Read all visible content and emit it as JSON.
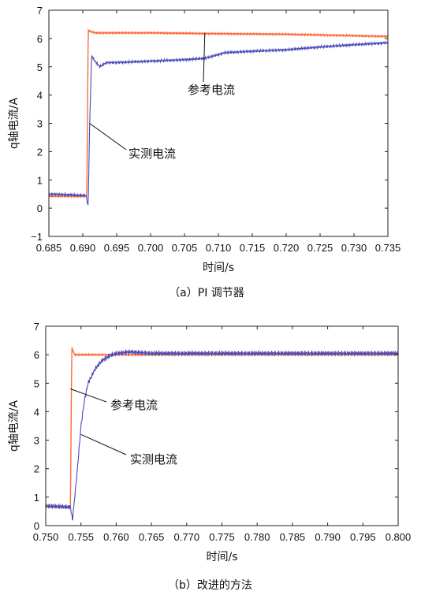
{
  "chart_data": [
    {
      "type": "line",
      "caption": "（a）PI 调节器",
      "xlabel": "时间/s",
      "ylabel": "q轴电流/A",
      "xlim": [
        0.685,
        0.735
      ],
      "ylim": [
        -1,
        7
      ],
      "x_ticks": [
        "0.685",
        "0.690",
        "0.695",
        "0.700",
        "0.705",
        "0.710",
        "0.715",
        "0.720",
        "0.725",
        "0.730",
        "0.735"
      ],
      "y_ticks": [
        "−1",
        "0",
        "1",
        "2",
        "3",
        "4",
        "5",
        "6",
        "7"
      ],
      "grid": false,
      "series": [
        {
          "name": "参考电流",
          "color": "#ff6a3d",
          "x": [
            0.685,
            0.6906,
            0.6908,
            0.6911,
            0.6918,
            0.7,
            0.71,
            0.72,
            0.73,
            0.735
          ],
          "y": [
            0.42,
            0.42,
            6.3,
            6.25,
            6.2,
            6.2,
            6.17,
            6.15,
            6.1,
            6.07
          ]
        },
        {
          "name": "实测电流",
          "color": "#4a4ab8",
          "x": [
            0.685,
            0.6905,
            0.6908,
            0.691,
            0.6913,
            0.6918,
            0.6925,
            0.6935,
            0.695,
            0.7,
            0.705,
            0.708,
            0.711,
            0.715,
            0.72,
            0.725,
            0.73,
            0.735
          ],
          "y": [
            0.5,
            0.45,
            0.05,
            2.8,
            5.4,
            5.2,
            5.0,
            5.15,
            5.15,
            5.2,
            5.25,
            5.3,
            5.5,
            5.55,
            5.6,
            5.7,
            5.78,
            5.85
          ]
        }
      ],
      "annotations": [
        {
          "text": "参考电流",
          "x": 0.708,
          "y": 6.2
        },
        {
          "text": "实测电流",
          "x": 0.691,
          "y": 3.0
        }
      ]
    },
    {
      "type": "line",
      "caption": "（b）改进的方法",
      "xlabel": "时间/s",
      "ylabel": "q轴电流/A",
      "xlim": [
        0.75,
        0.8
      ],
      "ylim": [
        0,
        7
      ],
      "x_ticks": [
        "0.750",
        "0.755",
        "0.760",
        "0.765",
        "0.770",
        "0.775",
        "0.780",
        "0.785",
        "0.790",
        "0.795",
        "0.800"
      ],
      "y_ticks": [
        "0",
        "1",
        "2",
        "3",
        "4",
        "5",
        "6",
        "7"
      ],
      "grid": false,
      "series": [
        {
          "name": "参考电流",
          "color": "#ff6a3d",
          "x": [
            0.75,
            0.7535,
            0.7537,
            0.7541,
            0.755,
            0.76,
            0.77,
            0.78,
            0.79,
            0.8
          ],
          "y": [
            0.65,
            0.65,
            6.25,
            6.0,
            6.0,
            6.0,
            6.0,
            6.0,
            6.0,
            6.0
          ]
        },
        {
          "name": "实测电流",
          "color": "#4a4ab8",
          "x": [
            0.75,
            0.7535,
            0.7538,
            0.7545,
            0.755,
            0.7555,
            0.756,
            0.757,
            0.758,
            0.759,
            0.76,
            0.762,
            0.765,
            0.77,
            0.78,
            0.79,
            0.8
          ],
          "y": [
            0.7,
            0.65,
            0.2,
            2.0,
            3.5,
            4.4,
            5.0,
            5.5,
            5.8,
            5.95,
            6.05,
            6.1,
            6.05,
            6.05,
            6.05,
            6.05,
            6.05
          ]
        }
      ],
      "annotations": [
        {
          "text": "参考电流",
          "x": 0.7535,
          "y": 4.8
        },
        {
          "text": "实测电流",
          "x": 0.755,
          "y": 3.2
        }
      ]
    }
  ]
}
